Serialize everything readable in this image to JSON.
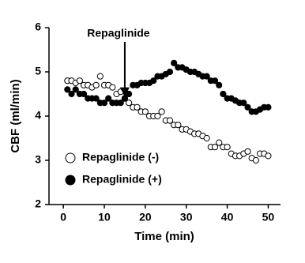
{
  "chart_data": {
    "type": "scatter",
    "x_label": "Time (min)",
    "y_label": "CBF (ml/min)",
    "annotation": {
      "text": "Repaglinide",
      "x": 15,
      "y": 4.4
    },
    "x": [
      1,
      2,
      3,
      4,
      5,
      6,
      7,
      8,
      9,
      10,
      11,
      12,
      13,
      14,
      15,
      16,
      17,
      18,
      19,
      20,
      21,
      22,
      23,
      24,
      25,
      26,
      27,
      28,
      29,
      30,
      31,
      32,
      33,
      34,
      35,
      36,
      37,
      38,
      39,
      40,
      41,
      42,
      43,
      44,
      45,
      46,
      47,
      48,
      49,
      50
    ],
    "series": [
      {
        "name": "Repaglinide (-)",
        "color": "#000000",
        "fill": "#ffffff",
        "values": [
          4.8,
          4.8,
          4.75,
          4.8,
          4.7,
          4.7,
          4.65,
          4.7,
          4.9,
          4.7,
          4.7,
          4.65,
          4.5,
          4.55,
          4.4,
          4.3,
          4.2,
          4.2,
          4.1,
          4.1,
          4.0,
          4.0,
          4.0,
          4.1,
          3.9,
          3.9,
          3.8,
          3.8,
          3.7,
          3.7,
          3.65,
          3.6,
          3.6,
          3.55,
          3.5,
          3.3,
          3.3,
          3.4,
          3.3,
          3.3,
          3.15,
          3.1,
          3.1,
          3.15,
          3.2,
          3.05,
          3.0,
          3.15,
          3.15,
          3.1
        ]
      },
      {
        "name": "Repaglinide (+)",
        "color": "#000000",
        "fill": "#000000",
        "values": [
          4.6,
          4.5,
          4.6,
          4.5,
          4.5,
          4.4,
          4.4,
          4.4,
          4.3,
          4.3,
          4.4,
          4.3,
          4.3,
          4.3,
          4.4,
          4.5,
          4.7,
          4.7,
          4.75,
          4.75,
          4.75,
          4.8,
          4.9,
          4.9,
          4.95,
          5.0,
          5.2,
          5.1,
          5.1,
          5.05,
          5.0,
          5.0,
          4.95,
          4.9,
          4.9,
          4.8,
          4.8,
          4.7,
          4.5,
          4.4,
          4.4,
          4.35,
          4.3,
          4.3,
          4.2,
          4.1,
          4.1,
          4.15,
          4.2,
          4.2
        ]
      }
    ],
    "xlim": [
      -3.5,
      53
    ],
    "ylim": [
      2,
      6
    ],
    "xticks": [
      0,
      10,
      20,
      30,
      40,
      50
    ],
    "yticks": [
      2,
      3,
      4,
      5,
      6
    ],
    "marker": "circle",
    "legend": "lower left",
    "grid": false
  }
}
